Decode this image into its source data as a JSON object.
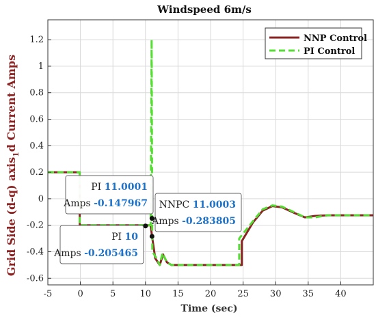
{
  "chart_data": {
    "type": "line",
    "title": "Windspeed 6m/s",
    "xlabel": "Time (sec)",
    "ylabel_parts": {
      "before": "Grid Side (d-q) axis",
      "subscript": "1",
      "after": "d Current Amps"
    },
    "xlim": [
      -5,
      45
    ],
    "ylim": [
      -0.65,
      1.35
    ],
    "xticks": [
      -5,
      0,
      5,
      10,
      15,
      20,
      25,
      30,
      35,
      40
    ],
    "yticks": [
      -0.6,
      -0.4,
      -0.2,
      0,
      0.2,
      0.4,
      0.6,
      0.8,
      1,
      1.2
    ],
    "ytick_labels": [
      "-0.6",
      "-0.4",
      "-0.2",
      "0",
      "0.2",
      "0.4",
      "0.6",
      "0.8",
      "1",
      "1.2"
    ],
    "grid": true,
    "legend_position": "top-right",
    "series": [
      {
        "name": "NNP Control",
        "color": "#8b2323",
        "style": "solid",
        "points": [
          [
            -5,
            0.2
          ],
          [
            -0.1,
            0.2
          ],
          [
            -0.1,
            -0.2
          ],
          [
            9,
            -0.2
          ],
          [
            10,
            -0.2
          ],
          [
            10.8,
            -0.2
          ],
          [
            11,
            -0.28
          ],
          [
            11.5,
            -0.45
          ],
          [
            12.2,
            -0.5
          ],
          [
            12.7,
            -0.42
          ],
          [
            13.3,
            -0.48
          ],
          [
            14,
            -0.5
          ],
          [
            20,
            -0.5
          ],
          [
            24.8,
            -0.5
          ],
          [
            24.8,
            -0.32
          ],
          [
            26.5,
            -0.18
          ],
          [
            28,
            -0.09
          ],
          [
            29.5,
            -0.055
          ],
          [
            31,
            -0.065
          ],
          [
            33,
            -0.11
          ],
          [
            34.5,
            -0.14
          ],
          [
            36,
            -0.13
          ],
          [
            38,
            -0.125
          ],
          [
            45,
            -0.125
          ]
        ]
      },
      {
        "name": "PI Control",
        "color": "#55dd33",
        "style": "dashed",
        "points": [
          [
            -5,
            0.2
          ],
          [
            -0.1,
            0.2
          ],
          [
            -0.1,
            -0.2
          ],
          [
            9,
            -0.2
          ],
          [
            10,
            -0.2
          ],
          [
            10.8,
            -0.2
          ],
          [
            10.95,
            1.2
          ],
          [
            11.05,
            -0.4
          ],
          [
            11.6,
            -0.44
          ],
          [
            12.2,
            -0.5
          ],
          [
            12.6,
            -0.41
          ],
          [
            13.3,
            -0.48
          ],
          [
            14,
            -0.5
          ],
          [
            24,
            -0.5
          ],
          [
            24.4,
            -0.5
          ],
          [
            24.4,
            -0.3
          ],
          [
            26.5,
            -0.17
          ],
          [
            28,
            -0.08
          ],
          [
            29.5,
            -0.05
          ],
          [
            31,
            -0.06
          ],
          [
            33,
            -0.105
          ],
          [
            34.5,
            -0.14
          ],
          [
            36,
            -0.14
          ],
          [
            38,
            -0.125
          ],
          [
            45,
            -0.125
          ]
        ]
      }
    ],
    "datatips": [
      {
        "label": "PI",
        "x": "11.0001",
        "ylabel": "Amps",
        "y": "-0.147967",
        "px": 11.0001,
        "py": -0.147967
      },
      {
        "label": "NNPC",
        "x": "11.0003",
        "ylabel": "Amps",
        "y": "-0.283805",
        "px": 11.0003,
        "py": -0.283805
      },
      {
        "label": "PI",
        "x": "10",
        "ylabel": "Amps",
        "y": "-0.205465",
        "px": 10,
        "py": -0.205465
      }
    ]
  },
  "colors": {
    "title": "#111111",
    "ylabel": "#8b2323",
    "xlabel": "#333333",
    "datatip_value": "#1e73c8",
    "grid": "#d9d9d9"
  }
}
